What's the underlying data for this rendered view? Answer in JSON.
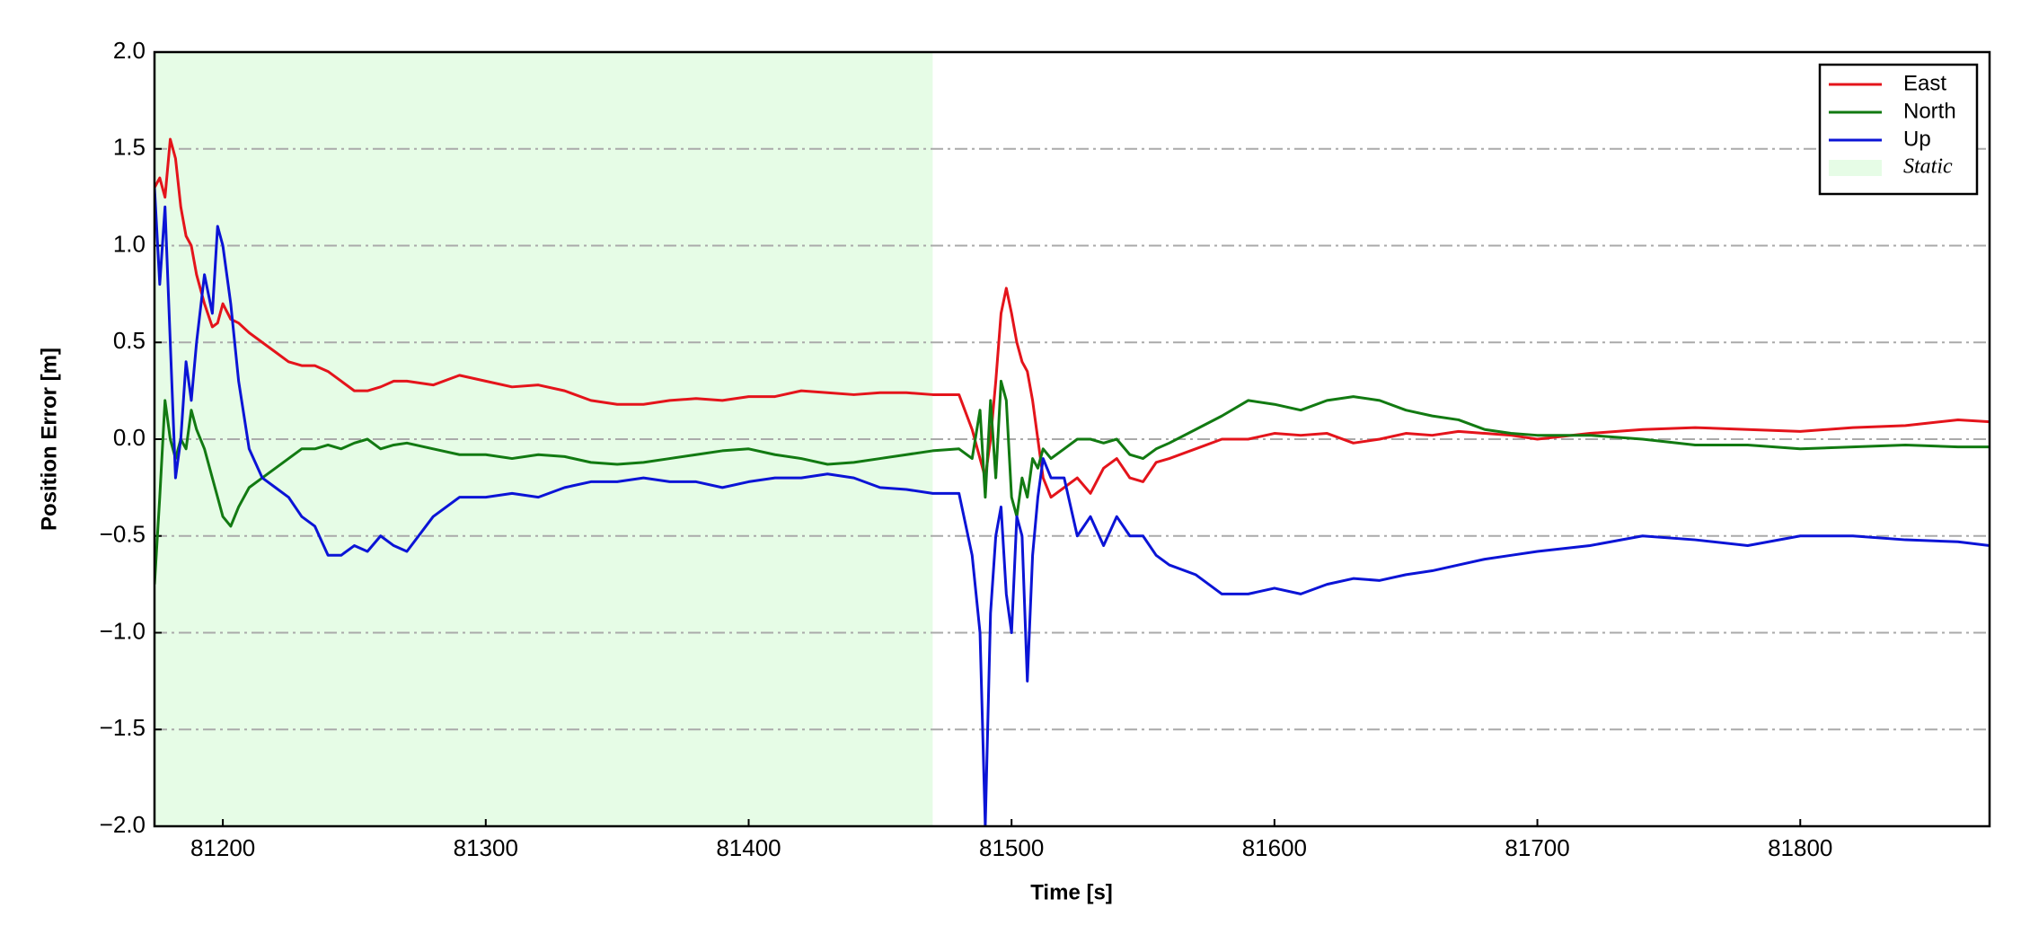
{
  "chart_data": {
    "type": "line",
    "xlabel": "Time [s]",
    "ylabel": "Position Error [m]",
    "xlim": [
      81174,
      81872
    ],
    "ylim": [
      -2.0,
      2.0
    ],
    "xticks": [
      81200,
      81300,
      81400,
      81500,
      81600,
      81700,
      81800
    ],
    "yticks": [
      {
        "value": -2.0,
        "label": "−2.0"
      },
      {
        "value": -1.5,
        "label": "−1.5"
      },
      {
        "value": -1.0,
        "label": "−1.0"
      },
      {
        "value": -0.5,
        "label": "−0.5"
      },
      {
        "value": 0.0,
        "label": "0.0"
      },
      {
        "value": 0.5,
        "label": "0.5"
      },
      {
        "value": 1.0,
        "label": "1.0"
      },
      {
        "value": 1.5,
        "label": "1.5"
      },
      {
        "value": 2.0,
        "label": "2.0"
      }
    ],
    "grid": true,
    "legend": "upper right",
    "shaded_region": {
      "label": "Static",
      "start": 81174,
      "end": 81470,
      "color": "#e6fce6"
    },
    "x": [
      81174,
      81176,
      81178,
      81180,
      81182,
      81184,
      81186,
      81188,
      81190,
      81193,
      81196,
      81198,
      81200,
      81203,
      81206,
      81210,
      81215,
      81220,
      81225,
      81230,
      81235,
      81240,
      81245,
      81250,
      81255,
      81260,
      81265,
      81270,
      81280,
      81290,
      81300,
      81310,
      81320,
      81330,
      81340,
      81350,
      81360,
      81370,
      81380,
      81390,
      81400,
      81410,
      81420,
      81430,
      81440,
      81450,
      81460,
      81470,
      81480,
      81485,
      81488,
      81490,
      81492,
      81494,
      81496,
      81498,
      81500,
      81502,
      81504,
      81506,
      81508,
      81510,
      81512,
      81515,
      81520,
      81525,
      81530,
      81535,
      81540,
      81545,
      81550,
      81555,
      81560,
      81570,
      81580,
      81590,
      81600,
      81610,
      81620,
      81630,
      81640,
      81650,
      81660,
      81670,
      81680,
      81690,
      81700,
      81720,
      81740,
      81760,
      81780,
      81800,
      81820,
      81840,
      81860,
      81872
    ],
    "series": [
      {
        "name": "East",
        "color": "#e4141b",
        "values": [
          1.3,
          1.35,
          1.25,
          1.55,
          1.45,
          1.2,
          1.05,
          1.0,
          0.85,
          0.7,
          0.58,
          0.6,
          0.7,
          0.62,
          0.6,
          0.55,
          0.5,
          0.45,
          0.4,
          0.38,
          0.38,
          0.35,
          0.3,
          0.25,
          0.25,
          0.27,
          0.3,
          0.3,
          0.28,
          0.33,
          0.3,
          0.27,
          0.28,
          0.25,
          0.2,
          0.18,
          0.18,
          0.2,
          0.21,
          0.2,
          0.22,
          0.22,
          0.25,
          0.24,
          0.23,
          0.24,
          0.24,
          0.23,
          0.23,
          0.05,
          -0.1,
          -0.2,
          0.0,
          0.3,
          0.65,
          0.78,
          0.65,
          0.5,
          0.4,
          0.35,
          0.2,
          0.0,
          -0.2,
          -0.3,
          -0.25,
          -0.2,
          -0.28,
          -0.15,
          -0.1,
          -0.2,
          -0.22,
          -0.12,
          -0.1,
          -0.05,
          0.0,
          0.0,
          0.03,
          0.02,
          0.03,
          -0.02,
          0.0,
          0.03,
          0.02,
          0.04,
          0.03,
          0.02,
          0.0,
          0.03,
          0.05,
          0.06,
          0.05,
          0.04,
          0.06,
          0.07,
          0.1,
          0.09
        ]
      },
      {
        "name": "North",
        "color": "#127a12",
        "values": [
          -0.75,
          -0.3,
          0.2,
          0.0,
          -0.1,
          0.0,
          -0.05,
          0.15,
          0.05,
          -0.05,
          -0.2,
          -0.3,
          -0.4,
          -0.45,
          -0.35,
          -0.25,
          -0.2,
          -0.15,
          -0.1,
          -0.05,
          -0.05,
          -0.03,
          -0.05,
          -0.02,
          0.0,
          -0.05,
          -0.03,
          -0.02,
          -0.05,
          -0.08,
          -0.08,
          -0.1,
          -0.08,
          -0.09,
          -0.12,
          -0.13,
          -0.12,
          -0.1,
          -0.08,
          -0.06,
          -0.05,
          -0.08,
          -0.1,
          -0.13,
          -0.12,
          -0.1,
          -0.08,
          -0.06,
          -0.05,
          -0.1,
          0.15,
          -0.3,
          0.2,
          -0.2,
          0.3,
          0.2,
          -0.3,
          -0.4,
          -0.2,
          -0.3,
          -0.1,
          -0.15,
          -0.05,
          -0.1,
          -0.05,
          0.0,
          0.0,
          -0.02,
          0.0,
          -0.08,
          -0.1,
          -0.05,
          -0.02,
          0.05,
          0.12,
          0.2,
          0.18,
          0.15,
          0.2,
          0.22,
          0.2,
          0.15,
          0.12,
          0.1,
          0.05,
          0.03,
          0.02,
          0.02,
          0.0,
          -0.03,
          -0.03,
          -0.05,
          -0.04,
          -0.03,
          -0.04,
          -0.04
        ]
      },
      {
        "name": "Up",
        "color": "#0b14d6",
        "values": [
          1.3,
          0.8,
          1.2,
          0.5,
          -0.2,
          0.0,
          0.4,
          0.2,
          0.5,
          0.85,
          0.65,
          1.1,
          1.0,
          0.7,
          0.3,
          -0.05,
          -0.2,
          -0.25,
          -0.3,
          -0.4,
          -0.45,
          -0.6,
          -0.6,
          -0.55,
          -0.58,
          -0.5,
          -0.55,
          -0.58,
          -0.4,
          -0.3,
          -0.3,
          -0.28,
          -0.3,
          -0.25,
          -0.22,
          -0.22,
          -0.2,
          -0.22,
          -0.22,
          -0.25,
          -0.22,
          -0.2,
          -0.2,
          -0.18,
          -0.2,
          -0.25,
          -0.26,
          -0.28,
          -0.28,
          -0.6,
          -1.0,
          -2.0,
          -0.9,
          -0.5,
          -0.35,
          -0.8,
          -1.0,
          -0.4,
          -0.5,
          -1.25,
          -0.6,
          -0.3,
          -0.1,
          -0.2,
          -0.2,
          -0.5,
          -0.4,
          -0.55,
          -0.4,
          -0.5,
          -0.5,
          -0.6,
          -0.65,
          -0.7,
          -0.8,
          -0.8,
          -0.77,
          -0.8,
          -0.75,
          -0.72,
          -0.73,
          -0.7,
          -0.68,
          -0.65,
          -0.62,
          -0.6,
          -0.58,
          -0.55,
          -0.5,
          -0.52,
          -0.55,
          -0.5,
          -0.5,
          -0.52,
          -0.53,
          -0.55
        ]
      }
    ]
  }
}
